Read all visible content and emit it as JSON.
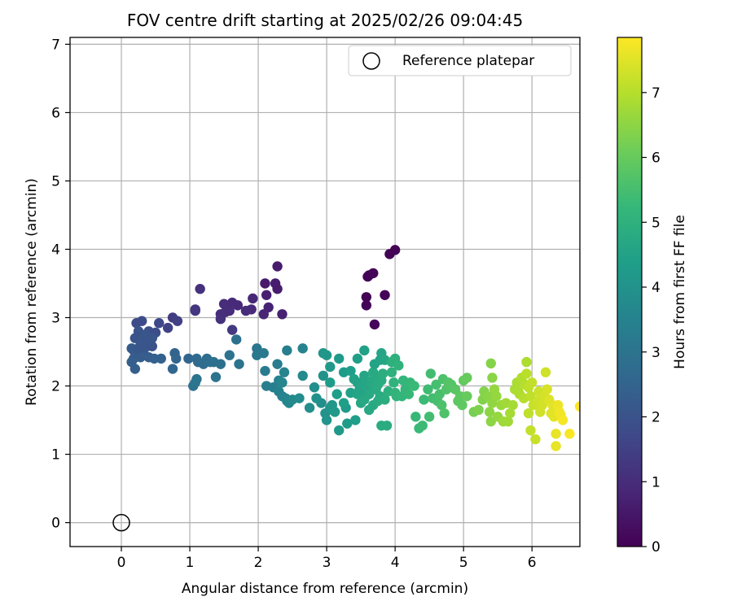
{
  "chart_data": {
    "type": "scatter",
    "title": "FOV centre drift starting at 2025/02/26 09:04:45",
    "xlabel": "Angular distance from reference (arcmin)",
    "ylabel": "Rotation from reference (arcmin)",
    "xlim": [
      -0.75,
      6.7
    ],
    "ylim": [
      -0.35,
      7.1
    ],
    "xticks": [
      0,
      1,
      2,
      3,
      4,
      5,
      6
    ],
    "yticks": [
      0,
      1,
      2,
      3,
      4,
      5,
      6,
      7
    ],
    "grid": true,
    "legend": {
      "placement": "top-right",
      "entries": [
        "Reference platepar"
      ]
    },
    "reference_point": {
      "name": "Reference platepar",
      "x": 0,
      "y": 0
    },
    "colorbar": {
      "label": "Hours from first FF file",
      "colormap": "viridis",
      "range": [
        0,
        7.85
      ],
      "ticks": [
        0,
        1,
        2,
        3,
        4,
        5,
        6,
        7
      ]
    },
    "points": [
      [
        3.6,
        3.6,
        0.05
      ],
      [
        3.62,
        3.62,
        0.05
      ],
      [
        3.68,
        3.65,
        0.08
      ],
      [
        3.92,
        3.93,
        0.02
      ],
      [
        4.0,
        3.99,
        0.03
      ],
      [
        3.58,
        3.3,
        0.06
      ],
      [
        3.85,
        3.33,
        0.07
      ],
      [
        3.58,
        3.18,
        0.1
      ],
      [
        3.7,
        2.9,
        0.12
      ],
      [
        2.28,
        3.75,
        0.6
      ],
      [
        2.1,
        3.5,
        0.55
      ],
      [
        2.25,
        3.5,
        0.65
      ],
      [
        2.28,
        3.42,
        0.6
      ],
      [
        2.12,
        3.33,
        0.7
      ],
      [
        2.15,
        3.15,
        0.75
      ],
      [
        2.08,
        3.05,
        0.8
      ],
      [
        2.35,
        3.05,
        0.7
      ],
      [
        1.92,
        3.28,
        0.85
      ],
      [
        1.9,
        3.12,
        0.9
      ],
      [
        1.7,
        3.18,
        0.9
      ],
      [
        1.62,
        3.22,
        0.95
      ],
      [
        1.5,
        3.2,
        1.0
      ],
      [
        1.45,
        3.05,
        1.0
      ],
      [
        1.52,
        3.08,
        1.05
      ],
      [
        1.45,
        2.98,
        1.1
      ],
      [
        1.58,
        3.1,
        1.0
      ],
      [
        1.15,
        3.42,
        1.1
      ],
      [
        1.08,
        3.12,
        1.2
      ],
      [
        1.08,
        3.1,
        1.25
      ],
      [
        1.82,
        3.1,
        1.0
      ],
      [
        1.62,
        2.82,
        1.3
      ],
      [
        0.75,
        3.0,
        1.4
      ],
      [
        0.82,
        2.95,
        1.5
      ],
      [
        0.68,
        2.85,
        1.6
      ],
      [
        0.55,
        2.92,
        1.7
      ],
      [
        0.3,
        2.95,
        1.8
      ],
      [
        0.22,
        2.92,
        1.8
      ],
      [
        0.4,
        2.8,
        1.9
      ],
      [
        0.5,
        2.78,
        1.85
      ],
      [
        0.25,
        2.8,
        2.0
      ],
      [
        0.35,
        2.75,
        2.05
      ],
      [
        0.2,
        2.7,
        2.0
      ],
      [
        0.3,
        2.68,
        2.1
      ],
      [
        0.45,
        2.7,
        2.1
      ],
      [
        0.28,
        2.6,
        2.15
      ],
      [
        0.38,
        2.58,
        2.15
      ],
      [
        0.18,
        2.52,
        2.1
      ],
      [
        0.15,
        2.55,
        2.2
      ],
      [
        0.22,
        2.48,
        2.25
      ],
      [
        0.32,
        2.5,
        2.2
      ],
      [
        0.28,
        2.42,
        2.3
      ],
      [
        0.4,
        2.42,
        2.3
      ],
      [
        0.18,
        2.4,
        2.3
      ],
      [
        0.15,
        2.35,
        2.35
      ],
      [
        0.2,
        2.25,
        2.35
      ],
      [
        0.48,
        2.4,
        2.4
      ],
      [
        0.58,
        2.4,
        2.45
      ],
      [
        0.45,
        2.58,
        2.0
      ],
      [
        0.35,
        2.62,
        2.05
      ],
      [
        0.25,
        2.55,
        2.1
      ],
      [
        0.78,
        2.48,
        2.5
      ],
      [
        0.8,
        2.4,
        2.55
      ],
      [
        0.75,
        2.25,
        2.6
      ],
      [
        0.98,
        2.4,
        2.6
      ],
      [
        1.1,
        2.4,
        2.7
      ],
      [
        1.12,
        2.35,
        2.7
      ],
      [
        1.2,
        2.32,
        2.75
      ],
      [
        1.25,
        2.4,
        2.8
      ],
      [
        1.3,
        2.35,
        2.85
      ],
      [
        1.35,
        2.35,
        2.9
      ],
      [
        1.45,
        2.32,
        2.9
      ],
      [
        1.58,
        2.45,
        2.95
      ],
      [
        1.72,
        2.32,
        3.0
      ],
      [
        1.38,
        2.13,
        3.0
      ],
      [
        1.1,
        2.1,
        3.0
      ],
      [
        1.05,
        2.0,
        2.95
      ],
      [
        1.08,
        2.05,
        3.05
      ],
      [
        1.68,
        2.68,
        2.9
      ],
      [
        1.98,
        2.55,
        3.1
      ],
      [
        1.98,
        2.45,
        3.15
      ],
      [
        2.08,
        2.48,
        3.2
      ],
      [
        2.28,
        2.32,
        3.3
      ],
      [
        2.42,
        2.52,
        3.4
      ],
      [
        2.65,
        2.55,
        3.5
      ],
      [
        2.1,
        2.22,
        3.3
      ],
      [
        2.12,
        2.0,
        3.35
      ],
      [
        2.22,
        1.98,
        3.4
      ],
      [
        2.3,
        1.92,
        3.45
      ],
      [
        2.35,
        1.85,
        3.5
      ],
      [
        2.4,
        1.82,
        3.55
      ],
      [
        2.42,
        1.78,
        3.6
      ],
      [
        2.45,
        1.75,
        3.65
      ],
      [
        2.3,
        2.08,
        3.5
      ],
      [
        2.38,
        2.2,
        3.55
      ],
      [
        2.35,
        2.05,
        3.6
      ],
      [
        2.5,
        1.8,
        3.7
      ],
      [
        2.65,
        2.15,
        3.75
      ],
      [
        2.6,
        1.82,
        3.8
      ],
      [
        2.75,
        1.68,
        3.85
      ],
      [
        2.82,
        1.98,
        3.9
      ],
      [
        2.85,
        1.82,
        3.95
      ],
      [
        2.92,
        1.75,
        3.9
      ],
      [
        2.95,
        2.15,
        4.0
      ],
      [
        2.98,
        1.6,
        4.0
      ],
      [
        3.0,
        1.5,
        4.05
      ],
      [
        3.05,
        1.68,
        4.1
      ],
      [
        3.08,
        1.72,
        4.15
      ],
      [
        3.12,
        1.62,
        4.2
      ],
      [
        3.18,
        1.35,
        4.2
      ],
      [
        3.28,
        1.68,
        4.25
      ],
      [
        3.3,
        1.45,
        4.3
      ],
      [
        3.42,
        1.5,
        4.35
      ],
      [
        2.95,
        2.48,
        4.1
      ],
      [
        3.0,
        2.45,
        4.15
      ],
      [
        3.05,
        2.28,
        4.2
      ],
      [
        3.18,
        2.4,
        4.25
      ],
      [
        3.25,
        2.2,
        4.3
      ],
      [
        3.35,
        2.22,
        4.35
      ],
      [
        3.45,
        2.4,
        4.4
      ],
      [
        3.55,
        2.52,
        4.45
      ],
      [
        3.05,
        2.05,
        4.3
      ],
      [
        3.15,
        1.88,
        4.35
      ],
      [
        3.25,
        1.75,
        4.4
      ],
      [
        3.35,
        1.9,
        4.45
      ],
      [
        3.4,
        2.1,
        4.5
      ],
      [
        3.45,
        2.05,
        4.5
      ],
      [
        3.48,
        1.95,
        4.55
      ],
      [
        3.5,
        1.9,
        4.55
      ],
      [
        3.52,
        2.0,
        4.6
      ],
      [
        3.55,
        2.15,
        4.6
      ],
      [
        3.58,
        2.08,
        4.65
      ],
      [
        3.6,
        1.98,
        4.65
      ],
      [
        3.62,
        1.88,
        4.7
      ],
      [
        3.65,
        2.05,
        4.7
      ],
      [
        3.68,
        2.2,
        4.75
      ],
      [
        3.7,
        2.12,
        4.75
      ],
      [
        3.72,
        1.95,
        4.8
      ],
      [
        3.75,
        2.02,
        4.8
      ],
      [
        3.78,
        1.85,
        4.85
      ],
      [
        3.8,
        2.08,
        4.85
      ],
      [
        3.82,
        2.18,
        4.9
      ],
      [
        3.45,
        1.88,
        4.6
      ],
      [
        3.5,
        1.75,
        4.65
      ],
      [
        3.62,
        1.65,
        4.7
      ],
      [
        3.68,
        1.72,
        4.75
      ],
      [
        3.55,
        1.8,
        4.7
      ],
      [
        3.75,
        1.78,
        4.8
      ],
      [
        3.85,
        1.8,
        4.9
      ],
      [
        3.7,
        2.32,
        4.5
      ],
      [
        3.78,
        2.38,
        4.55
      ],
      [
        3.8,
        2.48,
        4.6
      ],
      [
        3.85,
        2.38,
        4.65
      ],
      [
        3.95,
        2.35,
        4.95
      ],
      [
        4.0,
        2.4,
        5.0
      ],
      [
        4.05,
        2.3,
        5.05
      ],
      [
        3.8,
        1.42,
        4.8
      ],
      [
        3.88,
        1.42,
        4.85
      ],
      [
        3.9,
        1.92,
        4.95
      ],
      [
        3.95,
        2.2,
        5.0
      ],
      [
        3.98,
        2.05,
        5.05
      ],
      [
        4.0,
        1.9,
        5.1
      ],
      [
        4.02,
        1.85,
        5.1
      ],
      [
        4.1,
        1.85,
        5.15
      ],
      [
        4.12,
        2.08,
        5.15
      ],
      [
        4.15,
        1.95,
        5.2
      ],
      [
        4.2,
        1.88,
        5.25
      ],
      [
        4.22,
        2.05,
        5.25
      ],
      [
        4.28,
        2.0,
        5.3
      ],
      [
        4.3,
        1.55,
        5.25
      ],
      [
        4.35,
        1.38,
        5.3
      ],
      [
        4.4,
        1.42,
        5.35
      ],
      [
        4.42,
        1.8,
        5.35
      ],
      [
        4.48,
        1.95,
        5.4
      ],
      [
        4.5,
        1.55,
        5.45
      ],
      [
        4.55,
        1.82,
        5.45
      ],
      [
        4.52,
        2.18,
        5.45
      ],
      [
        4.6,
        2.02,
        5.5
      ],
      [
        4.62,
        1.78,
        5.5
      ],
      [
        4.65,
        1.88,
        5.55
      ],
      [
        4.68,
        1.72,
        5.6
      ],
      [
        4.7,
        2.1,
        5.6
      ],
      [
        4.72,
        1.6,
        5.65
      ],
      [
        4.75,
        1.95,
        5.65
      ],
      [
        4.78,
        2.05,
        5.7
      ],
      [
        4.8,
        1.98,
        5.7
      ],
      [
        4.82,
        2.02,
        5.75
      ],
      [
        4.88,
        1.95,
        5.8
      ],
      [
        4.92,
        1.78,
        5.85
      ],
      [
        4.95,
        1.85,
        5.85
      ],
      [
        4.98,
        1.72,
        5.9
      ],
      [
        5.0,
        2.08,
        5.95
      ],
      [
        5.05,
        2.12,
        6.0
      ],
      [
        5.05,
        1.85,
        6.0
      ],
      [
        5.15,
        1.62,
        6.2
      ],
      [
        5.22,
        1.65,
        6.3
      ],
      [
        5.28,
        1.8,
        6.35
      ],
      [
        5.3,
        1.92,
        6.4
      ],
      [
        5.35,
        1.85,
        6.45
      ],
      [
        5.38,
        1.62,
        6.5
      ],
      [
        5.4,
        1.48,
        6.5
      ],
      [
        5.42,
        1.75,
        6.55
      ],
      [
        5.45,
        1.95,
        6.6
      ],
      [
        5.4,
        2.33,
        6.4
      ],
      [
        5.42,
        2.12,
        6.45
      ],
      [
        5.48,
        1.85,
        6.6
      ],
      [
        5.5,
        1.55,
        6.6
      ],
      [
        5.55,
        1.72,
        6.65
      ],
      [
        5.58,
        1.48,
        6.7
      ],
      [
        5.62,
        1.75,
        6.75
      ],
      [
        5.65,
        1.48,
        6.75
      ],
      [
        5.68,
        1.6,
        6.8
      ],
      [
        5.72,
        1.72,
        6.8
      ],
      [
        5.75,
        1.95,
        6.85
      ],
      [
        5.78,
        2.05,
        6.85
      ],
      [
        5.8,
        1.92,
        6.9
      ],
      [
        5.82,
        1.88,
        6.9
      ],
      [
        5.85,
        2.12,
        6.95
      ],
      [
        5.88,
        1.82,
        7.0
      ],
      [
        5.9,
        2.02,
        7.0
      ],
      [
        5.92,
        2.18,
        7.05
      ],
      [
        5.92,
        2.35,
        6.9
      ],
      [
        5.95,
        1.98,
        7.1
      ],
      [
        5.98,
        1.85,
        7.1
      ],
      [
        6.0,
        2.05,
        7.15
      ],
      [
        5.95,
        1.6,
        7.1
      ],
      [
        5.98,
        1.35,
        7.15
      ],
      [
        6.02,
        1.72,
        7.2
      ],
      [
        6.05,
        1.22,
        7.2
      ],
      [
        6.08,
        1.78,
        7.25
      ],
      [
        6.1,
        1.92,
        7.25
      ],
      [
        6.12,
        1.62,
        7.3
      ],
      [
        6.15,
        1.72,
        7.35
      ],
      [
        6.18,
        1.85,
        7.35
      ],
      [
        6.2,
        2.2,
        7.3
      ],
      [
        6.22,
        1.95,
        7.4
      ],
      [
        6.25,
        1.8,
        7.45
      ],
      [
        6.28,
        1.6,
        7.5
      ],
      [
        6.3,
        1.72,
        7.5
      ],
      [
        6.32,
        1.55,
        7.55
      ],
      [
        6.35,
        1.3,
        7.6
      ],
      [
        6.35,
        1.12,
        7.6
      ],
      [
        6.38,
        1.72,
        7.65
      ],
      [
        6.4,
        1.62,
        7.7
      ],
      [
        6.42,
        1.58,
        7.7
      ],
      [
        6.45,
        1.5,
        7.75
      ],
      [
        6.55,
        1.3,
        7.8
      ],
      [
        6.7,
        1.7,
        7.85
      ]
    ]
  }
}
